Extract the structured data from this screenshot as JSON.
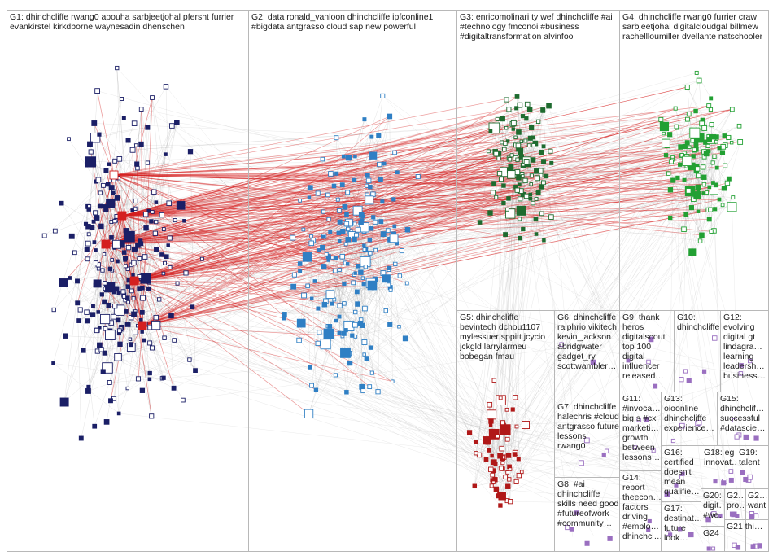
{
  "colors": {
    "G1": "#1b1f66",
    "G2": "#2f7fc4",
    "G3": "#1e6b2f",
    "G4": "#22a033",
    "G5": "#b01818",
    "other": "#9a6fc0",
    "edge_gray": "#9a9a9a",
    "edge_red": "#d42020",
    "panel_border": "#b8b8b8"
  },
  "groups": {
    "G1": "G1: dhinchcliffe rwang0 apouha sarbjeetjohal pfersht furrier evankirstel kirkdborne waynesadin dhenschen",
    "G2": "G2: data ronald_vanloon dhinchcliffe ipfconline1 #bigdata antgrasso cloud sap new powerful",
    "G3": "G3: enricomolinari ty wef dhinchcliffe #ai #technology fmconoi #business #digitaltransformation alvinfoo",
    "G4": "G4: dhinchcliffe rwang0 furrier craw sarbjeetjohal digitalcloudgal billmew rachellloumiller dvellante natschooler",
    "G5": "G5: dhinchcliffe bevintech dchou1107 mylessuer sppitt jcycio jckgld larrylarmeu bobegan fmau",
    "G6": "G6: dhinchcliffe ralphrio vikitech kevin_jackson abridgwater gadget_ry scottwambler…",
    "G7": "G7: dhinchcliffe halechris #cloud antgrasso future lessons rwang0…",
    "G8": "G8: #ai dhinchcliffe skills need good #futureofwork #community…",
    "G9": "G9: thank heros digitalscout top 100 digital influencer released…",
    "G10": "G10: dhinchcliffe",
    "G11": "G11: #invoca… big s #cx marketi… growth between lessons…",
    "G12": "G12: evolving digital gt lindagra… learning leadersh… business…",
    "G13": "G13: oioonline dhinchcliffe experience…",
    "G14": "G14: report theecon… factors driving #emplo… dhinchcl…",
    "G15": "G15: dhinchclif… successful #datascie…",
    "G16": "G16: certified doesn't mean qualifie…",
    "G17": "G17: destinat… future look…",
    "G18": "G18: eg innovat…",
    "G19": "G19: talent",
    "G20": "G20: digit… #we…",
    "G21": "G21 thi…",
    "G22": "G2… pro…",
    "G23": "G2… want",
    "G24": "G24"
  }
}
